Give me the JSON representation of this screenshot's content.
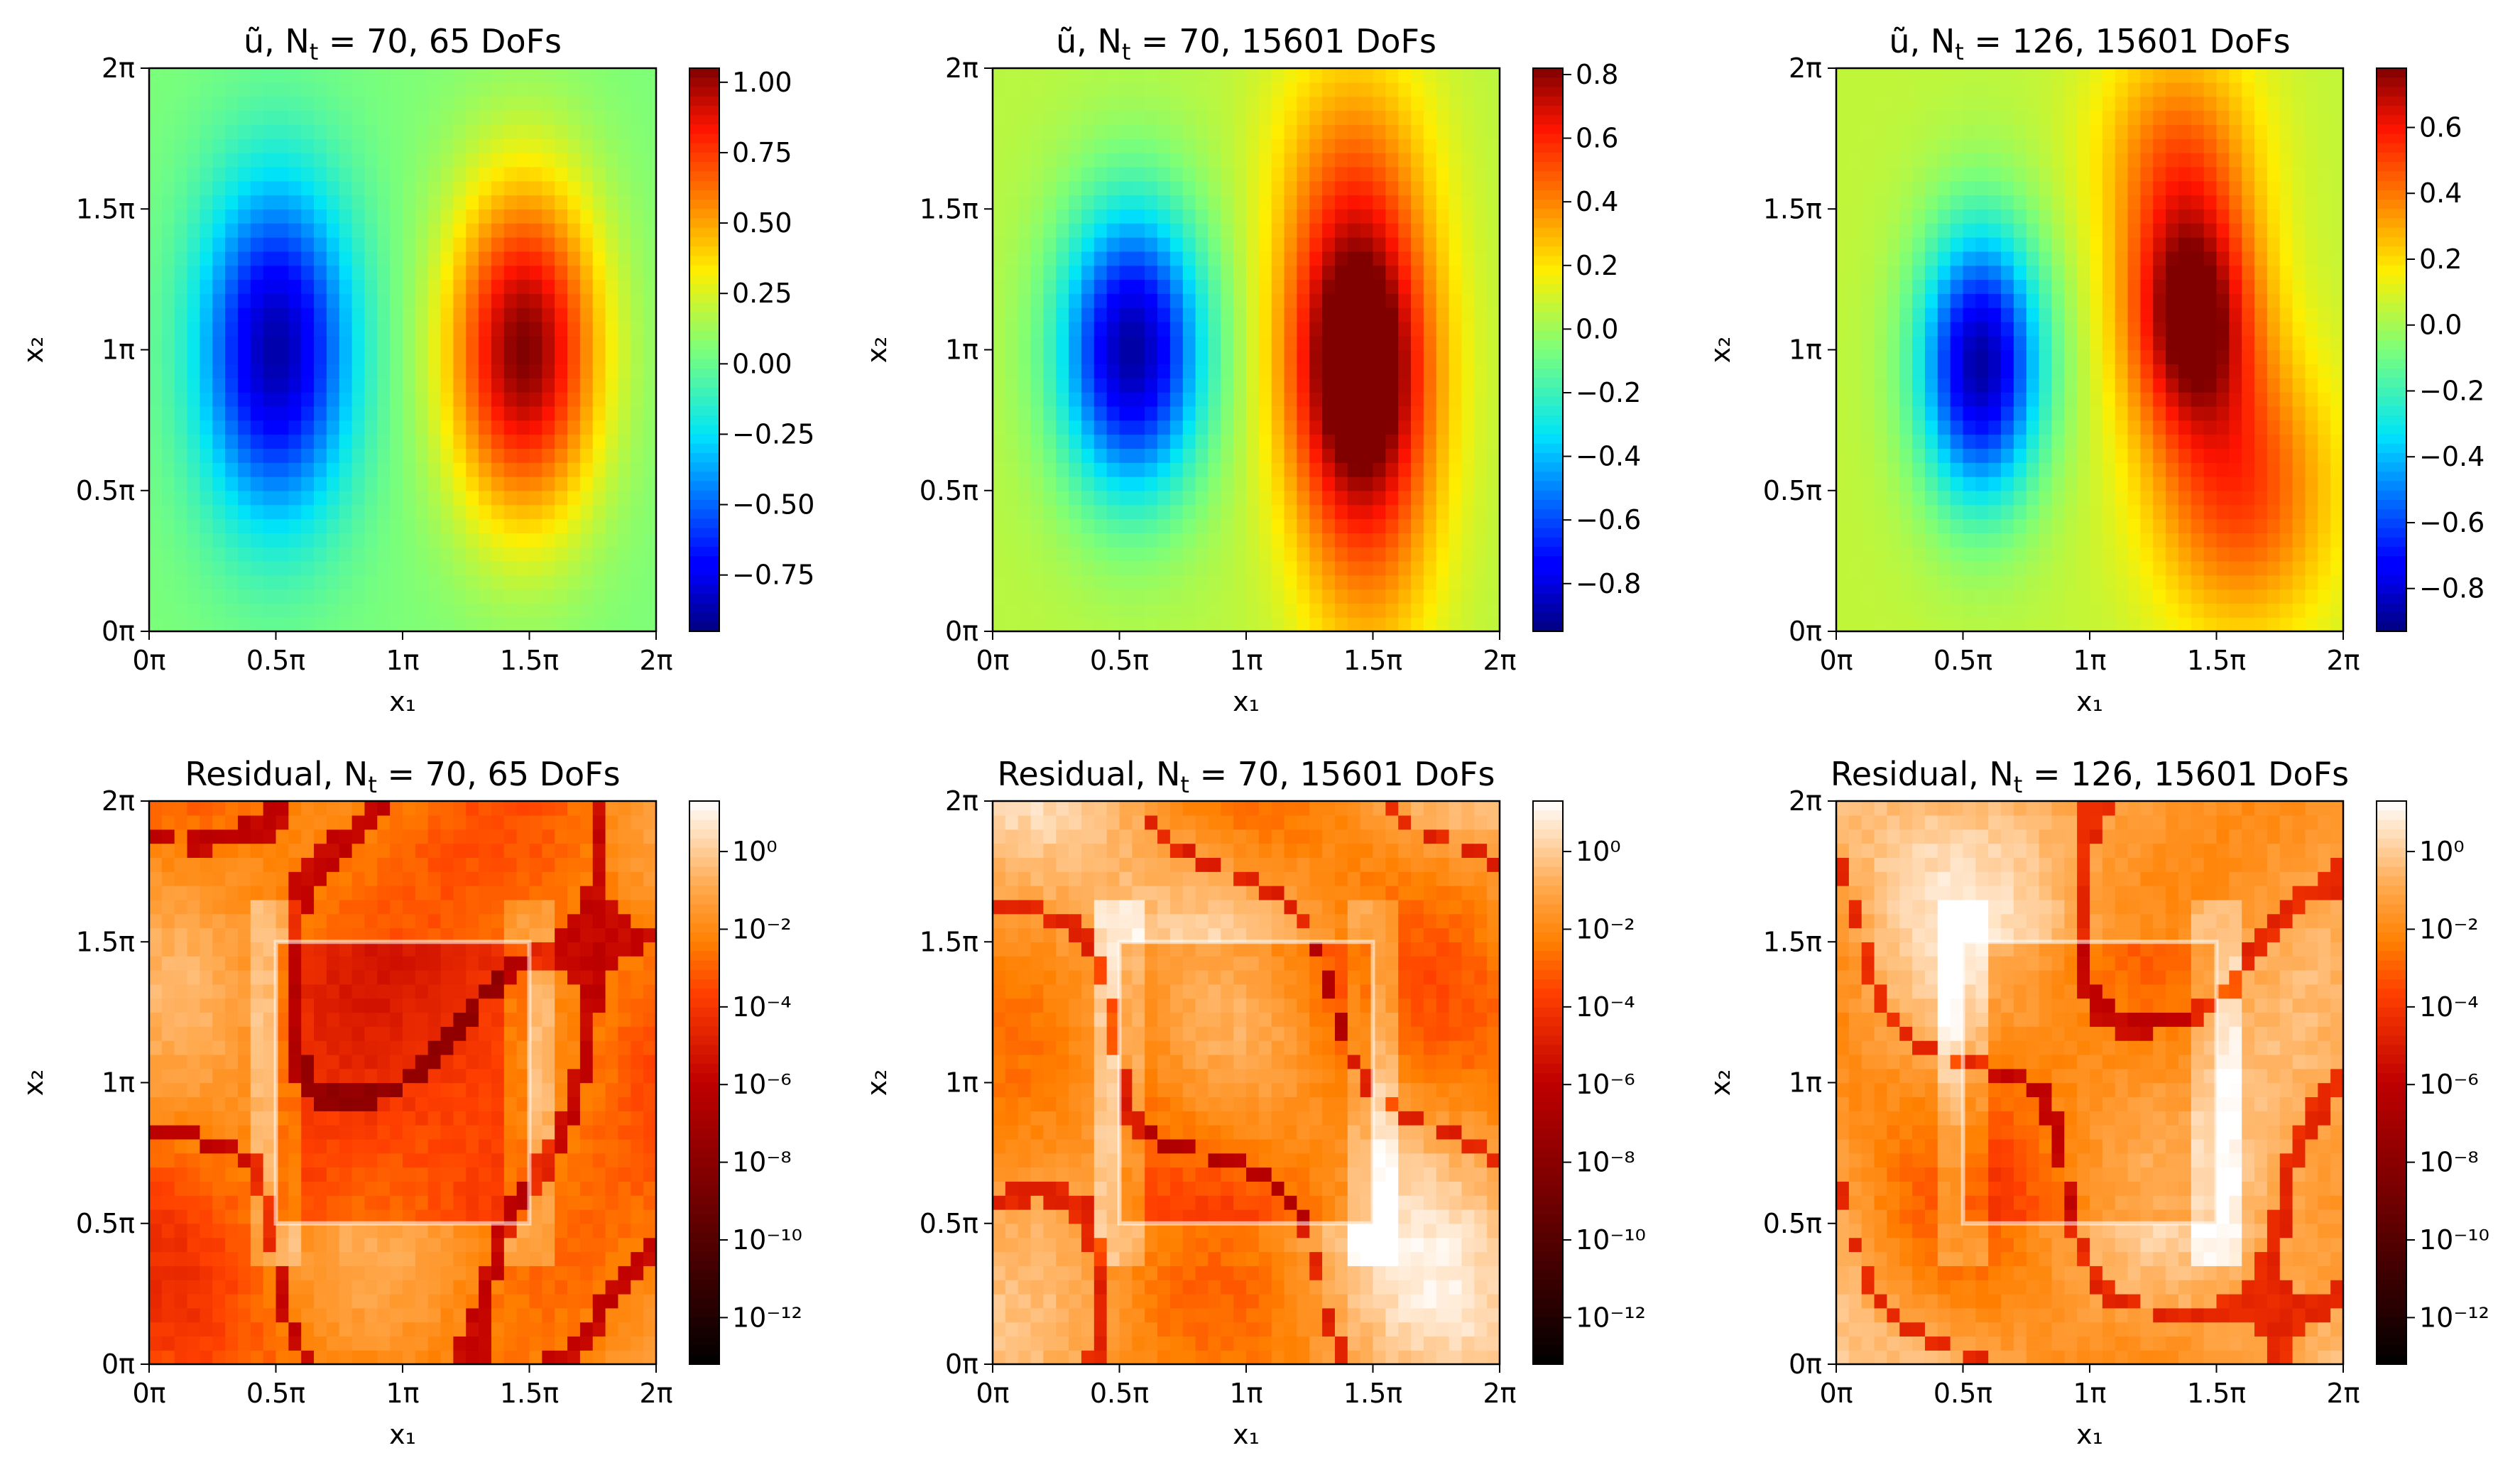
{
  "chart_data": [
    {
      "type": "heatmap",
      "title": "ũ, N_t = 70, 65 DoFs",
      "title_parts": {
        "prefix": "ũ, N",
        "sub": "t",
        "suffix": " = 70, 65 DoFs"
      },
      "xlabel": "x₁",
      "ylabel": "x₂",
      "xticks": [
        "0π",
        "0.5π",
        "1π",
        "1.5π",
        "2π"
      ],
      "yticks": [
        "0π",
        "0.5π",
        "1π",
        "1.5π",
        "2π"
      ],
      "xlim": [
        0,
        2
      ],
      "ylim": [
        0,
        2
      ],
      "colormap": "jet",
      "colorbar": {
        "scale": "linear",
        "min": -0.95,
        "max": 1.05,
        "ticks": [
          1.0,
          0.75,
          0.5,
          0.25,
          0.0,
          -0.25,
          -0.5,
          -0.75
        ],
        "labels": [
          "1.00",
          "0.75",
          "0.50",
          "0.25",
          "0.00",
          "−0.25",
          "−0.50",
          "−0.75"
        ]
      },
      "blobs": [
        {
          "x": 0.5,
          "y": 1.0,
          "sx": 0.21,
          "sy": 0.42,
          "amp": -0.93
        },
        {
          "x": 1.48,
          "y": 1.0,
          "sx": 0.21,
          "sy": 0.42,
          "amp": 1.0
        }
      ],
      "background": 0.05
    },
    {
      "type": "heatmap",
      "title": "ũ, N_t = 70, 15601 DoFs",
      "title_parts": {
        "prefix": "ũ, N",
        "sub": "t",
        "suffix": " = 70, 15601 DoFs"
      },
      "xlabel": "x₁",
      "ylabel": "x₂",
      "xticks": [
        "0π",
        "0.5π",
        "1π",
        "1.5π",
        "2π"
      ],
      "yticks": [
        "0π",
        "0.5π",
        "1π",
        "1.5π",
        "2π"
      ],
      "xlim": [
        0,
        2
      ],
      "ylim": [
        0,
        2
      ],
      "colormap": "jet",
      "colorbar": {
        "scale": "linear",
        "min": -0.95,
        "max": 0.82,
        "ticks": [
          0.8,
          0.6,
          0.4,
          0.2,
          0.0,
          -0.2,
          -0.4,
          -0.6,
          -0.8
        ],
        "labels": [
          "0.8",
          "0.6",
          "0.4",
          "0.2",
          "0.0",
          "−0.2",
          "−0.4",
          "−0.6",
          "−0.8"
        ]
      },
      "blobs": [
        {
          "x": 0.55,
          "y": 1.0,
          "sx": 0.2,
          "sy": 0.36,
          "amp": -0.95
        },
        {
          "x": 1.44,
          "y": 0.98,
          "sx": 0.2,
          "sy": 0.38,
          "amp": 0.85
        },
        {
          "x": 1.48,
          "y": 0.4,
          "sx": 0.2,
          "sy": 0.45,
          "amp": 0.32
        },
        {
          "x": 1.42,
          "y": 1.65,
          "sx": 0.22,
          "sy": 0.35,
          "amp": 0.28
        }
      ],
      "background": 0.05
    },
    {
      "type": "heatmap",
      "title": "ũ, N_t = 126, 15601 DoFs",
      "title_parts": {
        "prefix": "ũ, N",
        "sub": "t",
        "suffix": " = 126, 15601 DoFs"
      },
      "xlabel": "x₁",
      "ylabel": "x₂",
      "xticks": [
        "0π",
        "0.5π",
        "1π",
        "1.5π",
        "2π"
      ],
      "yticks": [
        "0π",
        "0.5π",
        "1π",
        "1.5π",
        "2π"
      ],
      "xlim": [
        0,
        2
      ],
      "ylim": [
        0,
        2
      ],
      "colormap": "jet",
      "colorbar": {
        "scale": "linear",
        "min": -0.93,
        "max": 0.78,
        "ticks": [
          0.6,
          0.4,
          0.2,
          0.0,
          -0.2,
          -0.4,
          -0.6,
          -0.8
        ],
        "labels": [
          "0.6",
          "0.4",
          "0.2",
          "0.0",
          "−0.2",
          "−0.4",
          "−0.6",
          "−0.8"
        ]
      },
      "blobs": [
        {
          "x": 0.57,
          "y": 0.95,
          "sx": 0.17,
          "sy": 0.34,
          "amp": -0.93
        },
        {
          "x": 1.4,
          "y": 1.12,
          "sx": 0.18,
          "sy": 0.3,
          "amp": 0.75
        },
        {
          "x": 1.6,
          "y": 0.5,
          "sx": 0.25,
          "sy": 0.35,
          "amp": 0.45
        },
        {
          "x": 1.35,
          "y": 1.7,
          "sx": 0.22,
          "sy": 0.3,
          "amp": 0.35
        }
      ],
      "background": 0.05
    },
    {
      "type": "heatmap",
      "title": "Residual, N_t = 70, 65 DoFs",
      "title_parts": {
        "prefix": "Residual, N",
        "sub": "t",
        "suffix": " = 70, 65 DoFs"
      },
      "xlabel": "x₁",
      "ylabel": "x₂",
      "xticks": [
        "0π",
        "0.5π",
        "1π",
        "1.5π",
        "2π"
      ],
      "yticks": [
        "0π",
        "0.5π",
        "1π",
        "1.5π",
        "2π"
      ],
      "xlim": [
        0,
        2
      ],
      "ylim": [
        0,
        2
      ],
      "colormap": "gist_heat",
      "colorbar": {
        "scale": "log",
        "min_exp": -13.2,
        "max_exp": 1.3,
        "ticks": [
          0,
          -2,
          -4,
          -6,
          -8,
          -10,
          -12
        ],
        "labels": [
          "10⁰",
          "10⁻²",
          "10⁻⁴",
          "10⁻⁶",
          "10⁻⁸",
          "10⁻¹⁰",
          "10⁻¹²"
        ]
      },
      "inner_box": [
        0.5,
        1.5,
        0.5,
        1.5
      ],
      "field_mean": -2.3,
      "inner_mean": -4.2,
      "seed": 11
    },
    {
      "type": "heatmap",
      "title": "Residual, N_t = 70, 15601 DoFs",
      "title_parts": {
        "prefix": "Residual, N",
        "sub": "t",
        "suffix": " = 70, 15601 DoFs"
      },
      "xlabel": "x₁",
      "ylabel": "x₂",
      "xticks": [
        "0π",
        "0.5π",
        "1π",
        "1.5π",
        "2π"
      ],
      "yticks": [
        "0π",
        "0.5π",
        "1π",
        "1.5π",
        "2π"
      ],
      "xlim": [
        0,
        2
      ],
      "ylim": [
        0,
        2
      ],
      "colormap": "gist_heat",
      "colorbar": {
        "scale": "log",
        "min_exp": -13.2,
        "max_exp": 1.3,
        "ticks": [
          0,
          -2,
          -4,
          -6,
          -8,
          -10,
          -12
        ],
        "labels": [
          "10⁰",
          "10⁻²",
          "10⁻⁴",
          "10⁻⁶",
          "10⁻⁸",
          "10⁻¹⁰",
          "10⁻¹²"
        ]
      },
      "inner_box": [
        0.5,
        1.5,
        0.5,
        1.5
      ],
      "field_mean": -1.2,
      "inner_mean": -2.8,
      "seed": 29
    },
    {
      "type": "heatmap",
      "title": "Residual, N_t = 126, 15601 DoFs",
      "title_parts": {
        "prefix": "Residual, N",
        "sub": "t",
        "suffix": " = 126, 15601 DoFs"
      },
      "xlabel": "x₁",
      "ylabel": "x₂",
      "xticks": [
        "0π",
        "0.5π",
        "1π",
        "1.5π",
        "2π"
      ],
      "yticks": [
        "0π",
        "0.5π",
        "1π",
        "1.5π",
        "2π"
      ],
      "xlim": [
        0,
        2
      ],
      "ylim": [
        0,
        2
      ],
      "colormap": "gist_heat",
      "colorbar": {
        "scale": "log",
        "min_exp": -13.2,
        "max_exp": 1.3,
        "ticks": [
          0,
          -2,
          -4,
          -6,
          -8,
          -10,
          -12
        ],
        "labels": [
          "10⁰",
          "10⁻²",
          "10⁻⁴",
          "10⁻⁶",
          "10⁻⁸",
          "10⁻¹⁰",
          "10⁻¹²"
        ]
      },
      "inner_box": [
        0.5,
        1.5,
        0.5,
        1.5
      ],
      "field_mean": -1.0,
      "inner_mean": -2.3,
      "seed": 47
    }
  ]
}
